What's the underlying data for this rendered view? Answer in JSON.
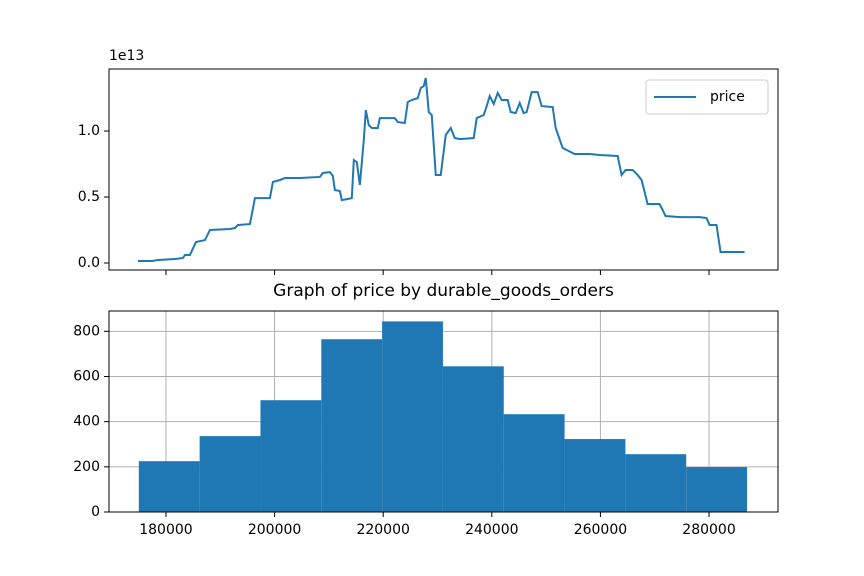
{
  "chart_data": [
    {
      "type": "line",
      "x": [
        174850,
        177420,
        178530,
        181660,
        183130,
        183500,
        184420,
        185520,
        187180,
        188100,
        191780,
        192700,
        193250,
        195460,
        196380,
        199140,
        199690,
        200980,
        201900,
        204660,
        208340,
        208890,
        210180,
        210730,
        211100,
        212020,
        212380,
        213490,
        214220,
        214590,
        215140,
        215700,
        216430,
        216800,
        217350,
        217900,
        219010,
        219380,
        222140,
        222690,
        223980,
        224530,
        225260,
        226370,
        226920,
        227470,
        227840,
        228390,
        228940,
        229680,
        230600,
        231520,
        232440,
        233180,
        234100,
        236670,
        237220,
        238510,
        239060,
        239620,
        240350,
        241090,
        241820,
        242930,
        243480,
        244400,
        245140,
        245870,
        246420,
        247340,
        248450,
        249180,
        251210,
        251760,
        253050,
        253780,
        255260,
        258020,
        259860,
        263170,
        263900,
        264640,
        265930,
        266850,
        267580,
        268690,
        270900,
        272000,
        274580,
        278260,
        279540,
        280100,
        281380,
        282120,
        286540
      ],
      "series": [
        {
          "name": "price",
          "color": "#1f77b4",
          "values": [
            0.015,
            0.015,
            0.023,
            0.03,
            0.038,
            0.061,
            0.061,
            0.159,
            0.174,
            0.25,
            0.258,
            0.265,
            0.288,
            0.295,
            0.492,
            0.492,
            0.614,
            0.629,
            0.644,
            0.644,
            0.652,
            0.682,
            0.689,
            0.659,
            0.553,
            0.545,
            0.477,
            0.485,
            0.492,
            0.78,
            0.765,
            0.591,
            0.932,
            1.159,
            1.045,
            1.023,
            1.023,
            1.098,
            1.098,
            1.068,
            1.061,
            1.22,
            1.235,
            1.25,
            1.326,
            1.341,
            1.402,
            1.144,
            1.121,
            0.667,
            0.667,
            0.97,
            1.023,
            0.947,
            0.939,
            0.947,
            1.098,
            1.121,
            1.189,
            1.265,
            1.205,
            1.288,
            1.235,
            1.235,
            1.144,
            1.136,
            1.212,
            1.136,
            1.144,
            1.295,
            1.295,
            1.189,
            1.182,
            1.023,
            0.871,
            0.856,
            0.826,
            0.826,
            0.818,
            0.811,
            0.667,
            0.705,
            0.705,
            0.667,
            0.629,
            0.447,
            0.447,
            0.356,
            0.348,
            0.348,
            0.341,
            0.288,
            0.288,
            0.083,
            0.083
          ]
        }
      ],
      "xlim": [
        169510,
        292700
      ],
      "ylim": [
        -0.053,
        1.47
      ],
      "xticks": [
        180000,
        200000,
        220000,
        240000,
        260000,
        280000
      ],
      "yticks": [
        {
          "value": 0,
          "label": "0.0"
        },
        0.5,
        {
          "value": 1,
          "label": "1.0"
        }
      ],
      "y_offset_label": "1e13",
      "legend": "upper right",
      "grid": false
    },
    {
      "type": "histogram",
      "title": "Graph of price by durable_goods_orders",
      "bins": [
        175000,
        186200,
        197400,
        208600,
        219800,
        231000,
        242200,
        253400,
        264600,
        275800,
        287000
      ],
      "values": [
        225,
        336,
        495,
        765,
        844,
        645,
        433,
        323,
        256,
        199
      ],
      "color": "#1f77b4",
      "xlim": [
        169510,
        292700
      ],
      "ylim": [
        0,
        890
      ],
      "xticks": [
        180000,
        200000,
        220000,
        240000,
        260000,
        280000
      ],
      "yticks": [
        0,
        200,
        400,
        600,
        800
      ],
      "grid": true
    }
  ]
}
